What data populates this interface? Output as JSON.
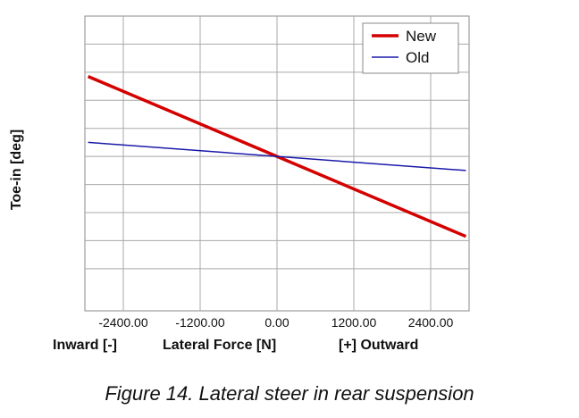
{
  "caption": "Figure 14. Lateral steer in rear suspension",
  "chart_data": {
    "type": "line",
    "ylabel": "Toe-in [deg]",
    "xlabel": {
      "left": "Inward [-]",
      "center": "Lateral Force [N]",
      "right": "[+] Outward"
    },
    "xlim": [
      -3000,
      3000
    ],
    "ylim": [
      -5.5,
      5
    ],
    "xticks": [
      -2400,
      -1200,
      0,
      1200,
      2400
    ],
    "xtick_labels": [
      "-2400.00",
      "-1200.00",
      "0.00",
      "1200.00",
      "2400.00"
    ],
    "y_gridlines": [
      -4,
      -3,
      -2,
      -1,
      0,
      1,
      2,
      3,
      4
    ],
    "show_y_tick_labels": false,
    "grid": true,
    "legend_position": "top-right",
    "series": [
      {
        "name": "New",
        "color": "#d40000",
        "x": [
          -2950,
          2950
        ],
        "y": [
          2.85,
          -2.85
        ]
      },
      {
        "name": "Old",
        "color": "#1a1aaa",
        "x": [
          -2950,
          2950
        ],
        "y": [
          0.5,
          -0.5
        ]
      }
    ]
  }
}
